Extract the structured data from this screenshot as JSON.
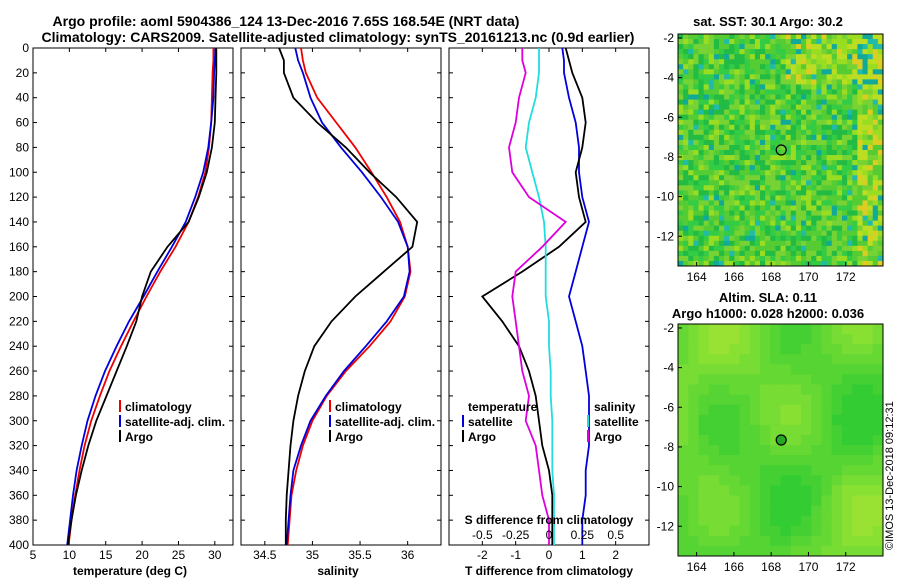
{
  "title": {
    "line1": "Argo profile: aoml 5904386_124 13-Dec-2016 7.65S 168.54E (NRT data)",
    "line2": "Climatology: CARS2009. Satellite-adjusted climatology: synTS_20161213.nc (0.9d earlier)"
  },
  "colors": {
    "climatology": "#ee0000",
    "satellite": "#0000dd",
    "argo": "#000000",
    "sat_salinity": "#22dddd",
    "mag_salinity": "#dd00dd"
  },
  "chart_data": [
    {
      "type": "line",
      "id": "temperature",
      "xlabel": "temperature (deg C)",
      "ylabel": "depth",
      "xlim": [
        5,
        32.5
      ],
      "ylim": [
        400,
        0
      ],
      "xticks": [
        "5",
        "10",
        "15",
        "20",
        "25",
        "30"
      ],
      "xtick_values": [
        5,
        10,
        15,
        20,
        25,
        30
      ],
      "yticks": [
        "0",
        "20",
        "40",
        "60",
        "80",
        "100",
        "120",
        "140",
        "160",
        "180",
        "200",
        "220",
        "240",
        "260",
        "280",
        "300",
        "320",
        "340",
        "360",
        "380",
        "400"
      ],
      "depth": [
        0,
        10,
        20,
        40,
        60,
        80,
        100,
        120,
        140,
        160,
        180,
        200,
        220,
        240,
        260,
        280,
        300,
        320,
        340,
        360,
        380,
        400
      ],
      "series": [
        {
          "name": "climatology",
          "color": "climatology",
          "values": [
            29.8,
            29.8,
            29.7,
            29.6,
            29.5,
            29.2,
            28.7,
            27.7,
            26.4,
            24.6,
            22.5,
            20.6,
            18.8,
            17.1,
            15.5,
            14.2,
            13.0,
            12.1,
            11.4,
            10.8,
            10.3,
            9.9
          ]
        },
        {
          "name": "satellite-adj. clim.",
          "color": "satellite",
          "values": [
            30.1,
            30.0,
            29.9,
            29.8,
            29.5,
            29.1,
            28.4,
            27.3,
            26.0,
            24.1,
            22.1,
            20.2,
            18.2,
            16.5,
            14.9,
            13.6,
            12.5,
            11.7,
            11.0,
            10.5,
            10.1,
            9.7
          ]
        },
        {
          "name": "Argo",
          "color": "argo",
          "values": [
            30.2,
            30.2,
            30.2,
            30.1,
            30.0,
            29.6,
            28.9,
            27.8,
            26.4,
            23.5,
            21.2,
            20.0,
            19.2,
            17.9,
            16.5,
            15.1,
            13.7,
            12.6,
            11.7,
            10.9,
            10.3,
            9.8
          ]
        }
      ],
      "legend": [
        "climatology",
        "satellite-adj. clim.",
        "Argo"
      ]
    },
    {
      "type": "line",
      "id": "salinity",
      "xlabel": "salinity",
      "xlim": [
        34.25,
        36.35
      ],
      "ylim": [
        400,
        0
      ],
      "xticks": [
        "34.5",
        "35",
        "35.5",
        "36"
      ],
      "xtick_values": [
        34.5,
        35,
        35.5,
        36
      ],
      "depth": [
        0,
        10,
        20,
        40,
        60,
        80,
        100,
        120,
        140,
        160,
        180,
        200,
        220,
        240,
        260,
        280,
        300,
        320,
        340,
        360,
        380,
        400
      ],
      "series": [
        {
          "name": "climatology",
          "color": "climatology",
          "values": [
            34.88,
            34.9,
            34.93,
            35.05,
            35.25,
            35.45,
            35.62,
            35.78,
            35.92,
            36.0,
            36.03,
            35.97,
            35.82,
            35.6,
            35.35,
            35.15,
            35.0,
            34.9,
            34.83,
            34.78,
            34.76,
            34.74
          ]
        },
        {
          "name": "satellite-adj. clim.",
          "color": "satellite",
          "values": [
            34.82,
            34.85,
            34.9,
            34.98,
            35.1,
            35.3,
            35.52,
            35.72,
            35.9,
            36.0,
            36.02,
            35.96,
            35.78,
            35.56,
            35.33,
            35.14,
            34.98,
            34.88,
            34.8,
            34.77,
            34.75,
            34.73
          ]
        },
        {
          "name": "Argo",
          "color": "argo",
          "values": [
            34.65,
            34.7,
            34.7,
            34.8,
            35.05,
            35.35,
            35.6,
            35.88,
            36.1,
            36.05,
            35.75,
            35.45,
            35.2,
            35.02,
            34.92,
            34.85,
            34.8,
            34.77,
            34.75,
            34.73,
            34.72,
            34.72
          ]
        }
      ],
      "legend": [
        "climatology",
        "satellite-adj. clim.",
        "Argo"
      ]
    },
    {
      "type": "line",
      "id": "difference",
      "xlabel": "T difference from climatology",
      "top_label": "S difference from climatology",
      "xlim": [
        -3,
        3
      ],
      "ylim": [
        400,
        0
      ],
      "xticks": [
        "-2",
        "-1",
        "0",
        "1",
        "2"
      ],
      "xtick_values": [
        -2,
        -1,
        0,
        1,
        2
      ],
      "top_ticks": [
        "-0.5",
        "-0.25",
        "0",
        "0.25",
        "0.5"
      ],
      "top_tick_values": [
        -2,
        -1,
        0,
        1,
        2
      ],
      "depth": [
        0,
        10,
        20,
        40,
        60,
        80,
        100,
        120,
        140,
        160,
        180,
        200,
        220,
        240,
        260,
        280,
        300,
        320,
        340,
        360,
        380,
        400
      ],
      "series": [
        {
          "name": "temperature satellite",
          "color": "satellite",
          "values": [
            0.4,
            0.45,
            0.45,
            0.6,
            0.8,
            0.9,
            0.9,
            1.0,
            1.2,
            1.0,
            0.8,
            0.6,
            0.8,
            1.0,
            1.1,
            1.2,
            1.2,
            1.2,
            1.1,
            1.1,
            1.0,
            1.0
          ]
        },
        {
          "name": "temperature Argo",
          "color": "argo",
          "values": [
            0.5,
            0.6,
            0.7,
            1.0,
            1.1,
            1.0,
            0.8,
            0.9,
            1.1,
            0.3,
            -0.8,
            -2.0,
            -1.4,
            -0.9,
            -0.6,
            -0.4,
            -0.3,
            -0.2,
            0.0,
            0.1,
            0.1,
            0.1
          ]
        },
        {
          "name": "salinity satellite",
          "color": "sat_salinity",
          "values": [
            -0.3,
            -0.3,
            -0.3,
            -0.4,
            -0.6,
            -0.7,
            -0.5,
            -0.3,
            -0.15,
            -0.1,
            -0.1,
            -0.1,
            0.0,
            0.0,
            0.05,
            0.05,
            0.1,
            0.1,
            0.1,
            0.15,
            0.15,
            0.15
          ]
        },
        {
          "name": "salinity Argo",
          "color": "mag_salinity",
          "values": [
            -0.8,
            -0.8,
            -0.7,
            -0.9,
            -1.0,
            -1.2,
            -1.1,
            -0.6,
            0.5,
            -0.2,
            -1.0,
            -1.1,
            -1.0,
            -0.9,
            -0.8,
            -0.6,
            -0.7,
            -0.4,
            -0.3,
            -0.2,
            0.0,
            0.0
          ]
        }
      ],
      "legend_left_title": "temperature",
      "legend_right_title": "salinity",
      "legend_left": [
        "satellite",
        "Argo"
      ],
      "legend_right": [
        "satellite",
        "Argo"
      ]
    },
    {
      "type": "heatmap",
      "id": "sst_map",
      "title": "sat. SST: 30.1  Argo: 30.2",
      "xlim": [
        163,
        174
      ],
      "ylim": [
        -13.5,
        -1.8
      ],
      "xticks": [
        "164",
        "166",
        "168",
        "170",
        "172"
      ],
      "xtick_values": [
        164,
        166,
        168,
        170,
        172
      ],
      "yticks": [
        "-2",
        "-4",
        "-6",
        "-8",
        "-10",
        "-12"
      ],
      "ytick_values": [
        -2,
        -4,
        -6,
        -8,
        -10,
        -12
      ],
      "marker": {
        "lon": 168.54,
        "lat": -7.65
      }
    },
    {
      "type": "heatmap",
      "id": "sla_map",
      "title": "Altim. SLA: 0.11",
      "subtitle": "Argo h1000: 0.028 h2000: 0.036",
      "xlim": [
        163,
        174
      ],
      "ylim": [
        -13.5,
        -1.8
      ],
      "xticks": [
        "164",
        "166",
        "168",
        "170",
        "172"
      ],
      "xtick_values": [
        164,
        166,
        168,
        170,
        172
      ],
      "yticks": [
        "-2",
        "-4",
        "-6",
        "-8",
        "-10",
        "-12"
      ],
      "ytick_values": [
        -2,
        -4,
        -6,
        -8,
        -10,
        -12
      ],
      "marker": {
        "lon": 168.54,
        "lat": -7.65
      }
    }
  ],
  "footer": {
    "stamp": "©IMOS 13-Dec-2018 09:12:31"
  }
}
